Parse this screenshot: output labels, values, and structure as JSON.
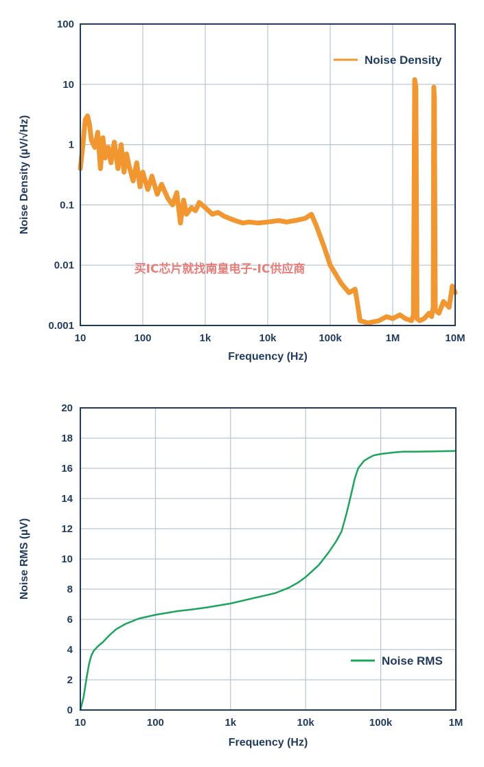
{
  "colors": {
    "density": "#f29630",
    "rms": "#1aa55a",
    "axis": "#1f3a5f",
    "grid": "#b6c3d3",
    "watermark": "#e8706a"
  },
  "watermark": "买IC芯片就找南皇电子-IC供应商",
  "chart_data": [
    {
      "type": "line",
      "xlabel": "Frequency (Hz)",
      "ylabel": "Noise Density (µV/√Hz)",
      "x_scale": "log",
      "y_scale": "log",
      "xlim": [
        10,
        10000000
      ],
      "ylim": [
        0.001,
        100
      ],
      "x_ticks": [
        10,
        100,
        1000,
        10000,
        100000,
        1000000,
        10000000
      ],
      "x_tick_labels": [
        "10",
        "100",
        "1k",
        "10k",
        "100k",
        "1M",
        "10M"
      ],
      "y_ticks": [
        0.001,
        0.01,
        0.1,
        1,
        10,
        100
      ],
      "y_tick_labels": [
        "0.001",
        "0.01",
        "0.1",
        "1",
        "10",
        "100"
      ],
      "grid": true,
      "legend_position": "top-right",
      "series": [
        {
          "name": "Noise Density",
          "x": [
            10,
            11,
            12,
            13,
            14,
            15,
            17,
            19,
            21,
            23,
            25,
            28,
            31,
            35,
            40,
            45,
            50,
            55,
            60,
            70,
            80,
            90,
            100,
            120,
            140,
            170,
            200,
            250,
            300,
            350,
            400,
            450,
            500,
            600,
            700,
            800,
            1000,
            1300,
            1600,
            2000,
            3000,
            4000,
            5000,
            7000,
            10000,
            15000,
            20000,
            30000,
            40000,
            50000,
            60000,
            80000,
            100000,
            150000,
            200000,
            250000,
            270000,
            300000,
            400000,
            600000,
            800000,
            1000000,
            1300000,
            1600000,
            2000000,
            2150000,
            2250000,
            2350000,
            2450000,
            2700000,
            3200000,
            3800000,
            4200000,
            4450000,
            4550000,
            4650000,
            4800000,
            5500000,
            6500000,
            8000000,
            9000000,
            10000000
          ],
          "y": [
            0.4,
            1.0,
            2.6,
            3.0,
            2.2,
            1.2,
            0.9,
            1.6,
            0.4,
            1.3,
            0.6,
            0.9,
            0.5,
            1.1,
            0.4,
            1.0,
            0.35,
            0.7,
            0.45,
            0.25,
            0.5,
            0.2,
            0.35,
            0.18,
            0.3,
            0.15,
            0.22,
            0.13,
            0.1,
            0.16,
            0.05,
            0.12,
            0.07,
            0.09,
            0.08,
            0.11,
            0.09,
            0.07,
            0.075,
            0.065,
            0.055,
            0.05,
            0.052,
            0.05,
            0.052,
            0.055,
            0.052,
            0.056,
            0.06,
            0.07,
            0.045,
            0.02,
            0.01,
            0.005,
            0.0035,
            0.004,
            0.0025,
            0.0012,
            0.0011,
            0.0012,
            0.0014,
            0.0013,
            0.0015,
            0.0013,
            0.0012,
            0.0015,
            12,
            9,
            0.0013,
            0.0012,
            0.0013,
            0.0016,
            0.0014,
            0.002,
            9,
            6,
            0.0018,
            0.0016,
            0.0025,
            0.002,
            0.0045,
            0.0035
          ]
        }
      ]
    },
    {
      "type": "line",
      "xlabel": "Frequency (Hz)",
      "ylabel": "Noise RMS (µV)",
      "x_scale": "log",
      "y_scale": "linear",
      "xlim": [
        10,
        1000000
      ],
      "ylim": [
        0,
        20
      ],
      "x_ticks": [
        10,
        100,
        1000,
        10000,
        100000,
        1000000
      ],
      "x_tick_labels": [
        "10",
        "100",
        "1k",
        "10k",
        "100k",
        "1M"
      ],
      "y_ticks": [
        0,
        2,
        4,
        6,
        8,
        10,
        12,
        14,
        16,
        18,
        20
      ],
      "y_tick_labels": [
        "0",
        "2",
        "4",
        "6",
        "8",
        "10",
        "12",
        "14",
        "16",
        "18",
        "20"
      ],
      "grid": true,
      "legend_position": "bottom-right",
      "series": [
        {
          "name": "Noise RMS",
          "x": [
            10,
            11,
            12,
            13,
            14,
            15,
            17,
            20,
            25,
            30,
            40,
            60,
            100,
            150,
            200,
            300,
            500,
            1000,
            2000,
            3000,
            4000,
            6000,
            8000,
            10000,
            15000,
            20000,
            25000,
            30000,
            35000,
            40000,
            45000,
            50000,
            60000,
            70000,
            80000,
            100000,
            150000,
            200000,
            300000,
            500000,
            1000000
          ],
          "y": [
            0,
            0.8,
            2.0,
            3.0,
            3.6,
            3.9,
            4.2,
            4.5,
            5.0,
            5.35,
            5.7,
            6.05,
            6.3,
            6.45,
            6.55,
            6.65,
            6.8,
            7.05,
            7.4,
            7.6,
            7.75,
            8.1,
            8.45,
            8.8,
            9.6,
            10.4,
            11.1,
            11.8,
            13.0,
            14.2,
            15.3,
            16.0,
            16.5,
            16.7,
            16.85,
            16.95,
            17.05,
            17.1,
            17.1,
            17.12,
            17.15
          ]
        }
      ]
    }
  ]
}
